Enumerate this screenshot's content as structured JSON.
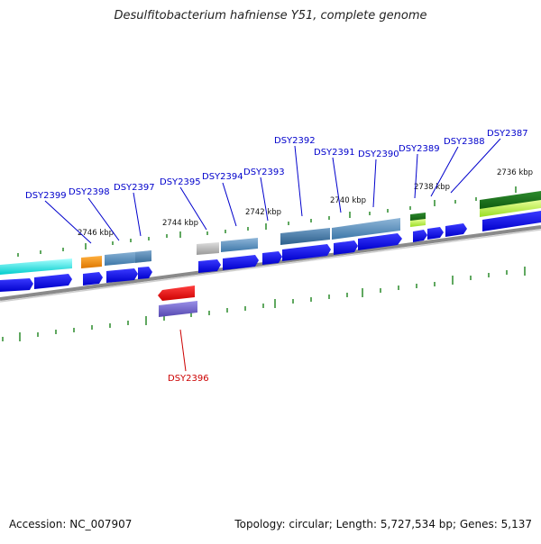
{
  "title": "Desulfitobacterium hafniense Y51, complete genome",
  "footer": {
    "accession": "Accession: NC_007907",
    "summary": "Topology: circular; Length: 5,727,534 bp; Genes: 5,137"
  },
  "colors": {
    "backbone": "#8a8a8a",
    "tick": "#2a8a2a",
    "cds": "#0000ee",
    "gene_label": "#0000cc",
    "highlight_label": "#cc0000"
  },
  "scale_labels": [
    "2746 kbp",
    "2744 kbp",
    "2742 kbp",
    "2740 kbp",
    "2738 kbp",
    "2736 kbp"
  ],
  "gene_labels": [
    {
      "id": "DSY2399",
      "strand": "forward"
    },
    {
      "id": "DSY2398",
      "strand": "forward"
    },
    {
      "id": "DSY2397",
      "strand": "forward"
    },
    {
      "id": "DSY2395",
      "strand": "forward"
    },
    {
      "id": "DSY2394",
      "strand": "forward"
    },
    {
      "id": "DSY2393",
      "strand": "forward"
    },
    {
      "id": "DSY2392",
      "strand": "forward"
    },
    {
      "id": "DSY2391",
      "strand": "forward"
    },
    {
      "id": "DSY2390",
      "strand": "forward"
    },
    {
      "id": "DSY2389",
      "strand": "forward"
    },
    {
      "id": "DSY2388",
      "strand": "forward"
    },
    {
      "id": "DSY2387",
      "strand": "forward"
    },
    {
      "id": "DSY2396",
      "strand": "reverse"
    }
  ]
}
